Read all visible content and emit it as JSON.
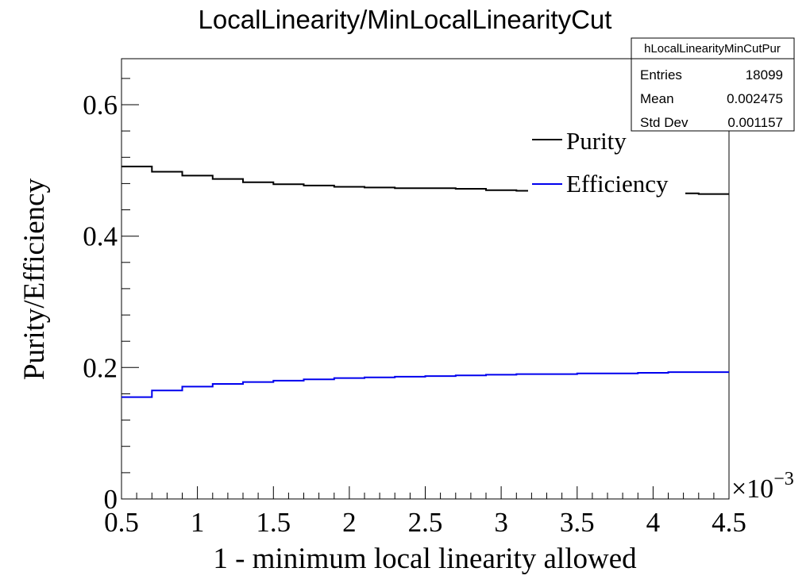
{
  "chart_data": {
    "type": "line",
    "title": "LocalLinearity/MinLocalLinearityCut",
    "xlabel": "1 - minimum local linearity allowed",
    "ylabel": "Purity/Efficiency",
    "x_multiplier": "×10",
    "x_multiplier_exponent": "−3",
    "xlim": [
      0.5,
      4.5
    ],
    "ylim": [
      0,
      0.67
    ],
    "x_ticks": [
      "0.5",
      "1",
      "1.5",
      "2",
      "2.5",
      "3",
      "3.5",
      "4",
      "4.5"
    ],
    "y_ticks": [
      "0",
      "0.2",
      "0.4",
      "0.6"
    ],
    "bin_edges": [
      0.5,
      0.7,
      0.9,
      1.1,
      1.3,
      1.5,
      1.7,
      1.9,
      2.1,
      2.3,
      2.5,
      2.7,
      2.9,
      3.1,
      3.3,
      3.5,
      3.7,
      3.9,
      4.1,
      4.3,
      4.5
    ],
    "series": [
      {
        "name": "Purity",
        "color": "#000000",
        "values": [
          0.506,
          0.498,
          0.492,
          0.487,
          0.482,
          0.479,
          0.477,
          0.475,
          0.474,
          0.473,
          0.473,
          0.472,
          0.47,
          0.469,
          0.468,
          0.467,
          0.467,
          0.466,
          0.465,
          0.464
        ]
      },
      {
        "name": "Efficiency",
        "color": "#0000ee",
        "values": [
          0.155,
          0.165,
          0.171,
          0.175,
          0.178,
          0.18,
          0.182,
          0.184,
          0.185,
          0.186,
          0.187,
          0.188,
          0.189,
          0.19,
          0.19,
          0.191,
          0.191,
          0.192,
          0.193,
          0.193
        ]
      }
    ],
    "legend": {
      "position": "top-right",
      "entries": [
        "Purity",
        "Efficiency"
      ]
    },
    "grid": false
  },
  "stats_box": {
    "title": "hLocalLinearityMinCutPur",
    "rows": [
      {
        "label": "Entries",
        "value": "18099"
      },
      {
        "label": "Mean",
        "value": "0.002475"
      },
      {
        "label": "Std Dev",
        "value": "0.001157"
      }
    ]
  }
}
